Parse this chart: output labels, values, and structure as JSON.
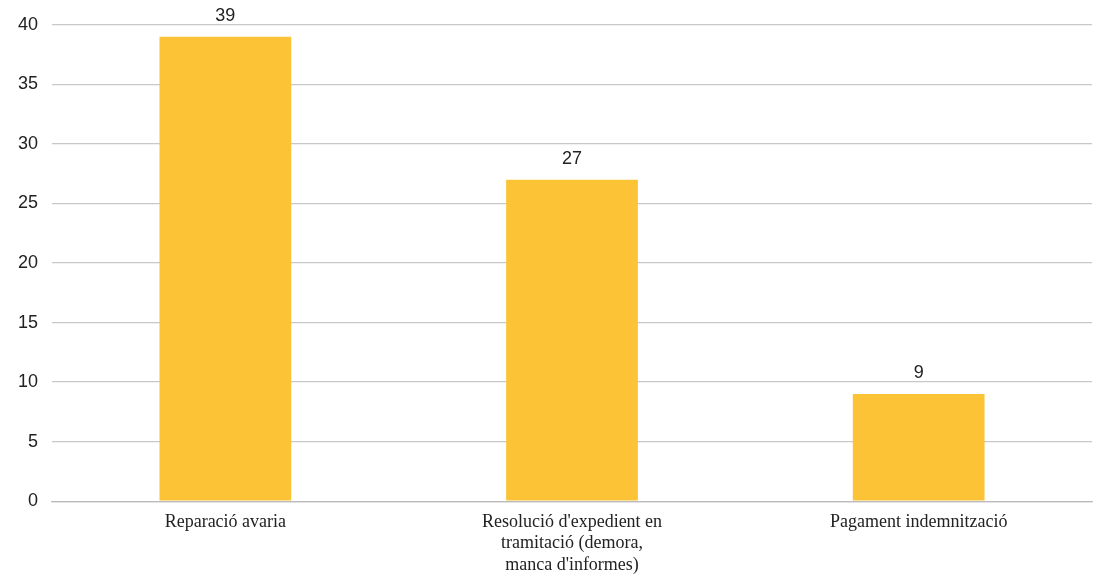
{
  "chart_data": {
    "type": "bar",
    "categories": [
      "Reparació avaria",
      "Resolució d'expedient en tramitació (demora, manca d'informes)",
      "Pagament indemnització"
    ],
    "values": [
      39,
      27,
      9
    ],
    "color": "#fbc335",
    "ylim": [
      0,
      40
    ],
    "yticks": [
      0,
      5,
      10,
      15,
      20,
      25,
      30,
      35,
      40
    ],
    "grid": "y",
    "data_labels": true,
    "legend": false
  }
}
